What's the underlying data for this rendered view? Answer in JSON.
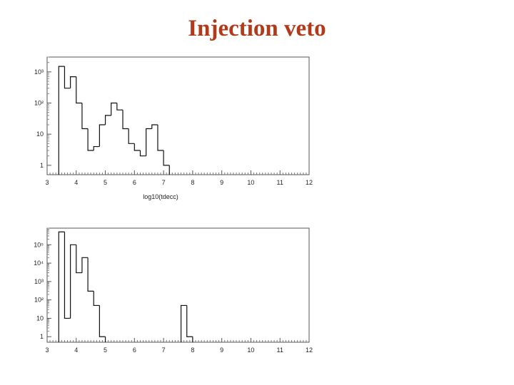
{
  "title": "Injection veto",
  "colors": {
    "title": "#b03a1a",
    "line": "#111111",
    "frame": "#555555"
  },
  "chart_data": [
    {
      "type": "histogram",
      "xlabel": "log10(tdecc)",
      "xlim": [
        3,
        12
      ],
      "x_ticks": [
        "3",
        "4",
        "5",
        "6",
        "7",
        "8",
        "9",
        "10",
        "11",
        "12"
      ],
      "y_scale": "log",
      "ylim": [
        0.5,
        3000
      ],
      "y_ticks": [
        {
          "value": 1,
          "label": "1"
        },
        {
          "value": 10,
          "label": "10"
        },
        {
          "value": 100,
          "label": "10²"
        },
        {
          "value": 1000,
          "label": "10³"
        }
      ],
      "bin_width": 0.2,
      "bins": [
        {
          "x": 3.4,
          "y": 1500
        },
        {
          "x": 3.6,
          "y": 300
        },
        {
          "x": 3.8,
          "y": 700
        },
        {
          "x": 4.0,
          "y": 100
        },
        {
          "x": 4.2,
          "y": 15
        },
        {
          "x": 4.4,
          "y": 3
        },
        {
          "x": 4.6,
          "y": 4
        },
        {
          "x": 4.8,
          "y": 20
        },
        {
          "x": 5.0,
          "y": 40
        },
        {
          "x": 5.2,
          "y": 100
        },
        {
          "x": 5.4,
          "y": 60
        },
        {
          "x": 5.6,
          "y": 15
        },
        {
          "x": 5.8,
          "y": 5
        },
        {
          "x": 6.0,
          "y": 3
        },
        {
          "x": 6.2,
          "y": 2
        },
        {
          "x": 6.4,
          "y": 15
        },
        {
          "x": 6.6,
          "y": 20
        },
        {
          "x": 6.8,
          "y": 3
        },
        {
          "x": 7.0,
          "y": 1
        }
      ]
    },
    {
      "type": "histogram",
      "xlabel": "",
      "xlim": [
        3,
        12
      ],
      "x_ticks": [
        "3",
        "4",
        "5",
        "6",
        "7",
        "8",
        "9",
        "10",
        "11",
        "12"
      ],
      "y_scale": "log",
      "ylim": [
        0.5,
        800000
      ],
      "y_ticks": [
        {
          "value": 1,
          "label": "1"
        },
        {
          "value": 10,
          "label": "10"
        },
        {
          "value": 100,
          "label": "10²"
        },
        {
          "value": 1000,
          "label": "10³"
        },
        {
          "value": 10000,
          "label": "10⁴"
        },
        {
          "value": 100000,
          "label": "10⁵"
        }
      ],
      "bin_width": 0.2,
      "bins": [
        {
          "x": 3.4,
          "y": 500000
        },
        {
          "x": 3.6,
          "y": 10
        },
        {
          "x": 3.8,
          "y": 100000
        },
        {
          "x": 4.0,
          "y": 3000
        },
        {
          "x": 4.2,
          "y": 20000
        },
        {
          "x": 4.4,
          "y": 300
        },
        {
          "x": 4.6,
          "y": 50
        },
        {
          "x": 4.8,
          "y": 1
        },
        {
          "x": 7.6,
          "y": 50
        },
        {
          "x": 7.8,
          "y": 1
        }
      ]
    }
  ]
}
